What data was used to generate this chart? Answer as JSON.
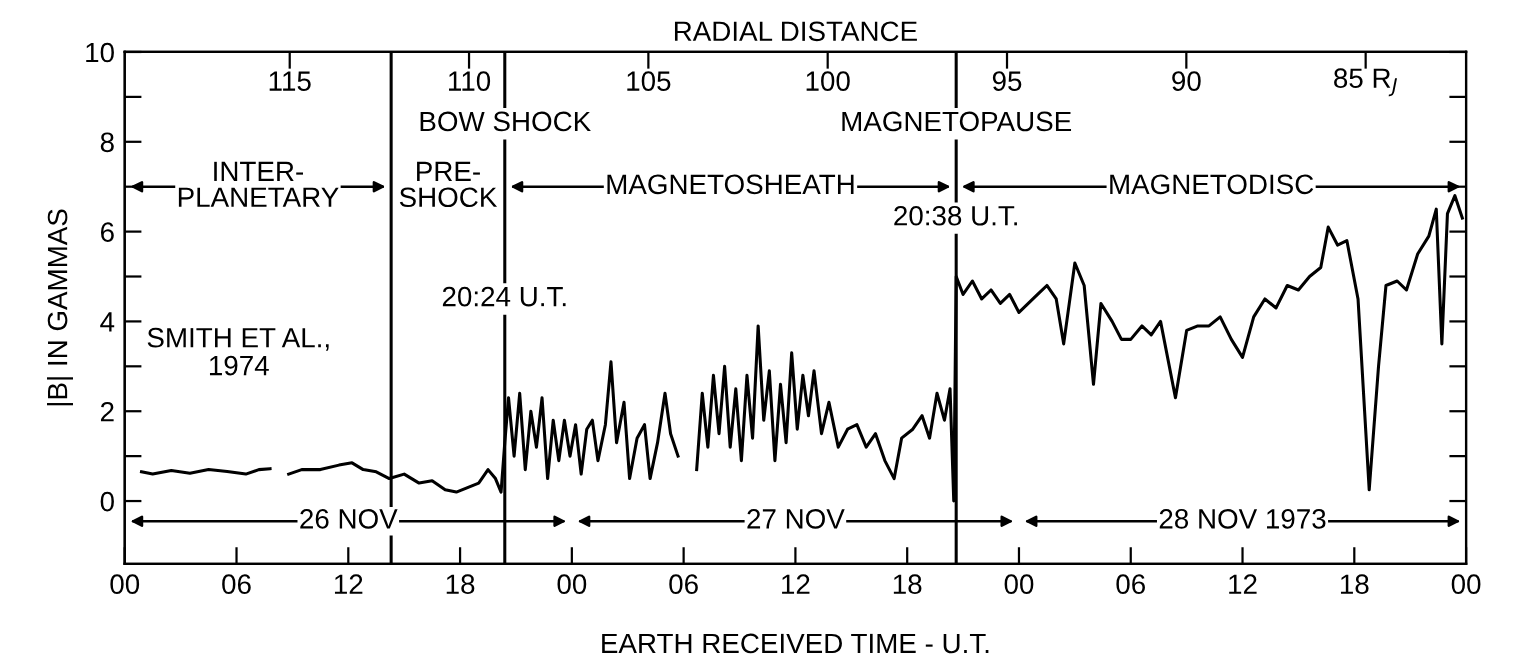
{
  "chart_data": {
    "type": "line",
    "x2label": "RADIAL DISTANCE",
    "ylabel": "|B| IN GAMMAS",
    "xlabel": "EARTH RECEIVED TIME - U.T.",
    "x": [
      0.9,
      1.5,
      2.5,
      3.5,
      4.5,
      5.5,
      6.5,
      7.2,
      7.8,
      8.3,
      8.8,
      9.5,
      10.5,
      11.5,
      12.2,
      12.8,
      13.5,
      14.2,
      15,
      15.8,
      16.5,
      17.2,
      17.8,
      18.4,
      19,
      19.5,
      19.9,
      20.2,
      20.4,
      20.6,
      20.9,
      21.2,
      21.5,
      21.8,
      22.1,
      22.4,
      22.7,
      23,
      23.3,
      23.6,
      23.9,
      24.2,
      24.5,
      24.8,
      25.1,
      25.4,
      25.8,
      26.1,
      26.4,
      26.8,
      27.1,
      27.5,
      27.9,
      28.2,
      28.6,
      29,
      29.3,
      29.7,
      30.2,
      30.7,
      31,
      31.3,
      31.6,
      31.9,
      32.2,
      32.5,
      32.8,
      33.1,
      33.4,
      33.7,
      34,
      34.3,
      34.6,
      34.9,
      35.2,
      35.5,
      35.8,
      36.1,
      36.4,
      36.7,
      37,
      37.4,
      37.8,
      38.3,
      38.8,
      39.3,
      39.8,
      40.3,
      40.8,
      41.3,
      41.7,
      42.3,
      42.8,
      43.2,
      43.6,
      44,
      44.3,
      44.5,
      44.63,
      45,
      45.5,
      46,
      46.5,
      47,
      47.5,
      48,
      48.5,
      49,
      49.5,
      50,
      50.4,
      51,
      51.5,
      52,
      52.4,
      53,
      53.5,
      54,
      54.6,
      55.1,
      55.6,
      56.4,
      57,
      57.6,
      58.2,
      58.8,
      59.4,
      60,
      60.6,
      61.2,
      61.8,
      62.4,
      63,
      63.6,
      64.2,
      64.6,
      65.1,
      65.6,
      66.2,
      66.8,
      67.3,
      67.7,
      68.3,
      68.8,
      69.4,
      70,
      70.4,
      70.7,
      71,
      71.4,
      71.8
    ],
    "series": [
      {
        "color": "#000000",
        "values": [
          0.65,
          0.6,
          0.68,
          0.62,
          0.7,
          0.66,
          0.6,
          0.7,
          0.72,
          null,
          0.6,
          0.7,
          0.7,
          0.8,
          0.85,
          0.7,
          0.65,
          0.5,
          0.6,
          0.4,
          0.45,
          0.25,
          0.2,
          0.3,
          0.4,
          0.7,
          0.5,
          0.2,
          1.3,
          2.3,
          1.0,
          2.4,
          0.7,
          2.0,
          1.2,
          2.3,
          0.5,
          1.8,
          0.9,
          1.8,
          1.0,
          1.7,
          0.6,
          1.6,
          1.8,
          0.9,
          1.7,
          3.1,
          1.3,
          2.2,
          0.5,
          1.4,
          1.7,
          0.5,
          1.3,
          2.4,
          1.5,
          1.0,
          null,
          0.7,
          2.4,
          1.2,
          2.8,
          1.5,
          3.0,
          1.2,
          2.5,
          0.9,
          2.8,
          1.4,
          3.9,
          1.8,
          2.9,
          0.9,
          2.6,
          1.3,
          3.3,
          1.6,
          2.8,
          1.9,
          2.9,
          1.5,
          2.2,
          1.2,
          1.6,
          1.7,
          1.2,
          1.5,
          0.9,
          0.5,
          1.4,
          1.6,
          1.9,
          1.4,
          2.4,
          1.8,
          2.5,
          0.0,
          5.0,
          4.6,
          4.9,
          4.5,
          4.7,
          4.4,
          4.6,
          4.2,
          4.4,
          4.6,
          4.8,
          4.5,
          3.5,
          5.3,
          4.8,
          2.6,
          4.4,
          4.0,
          3.6,
          3.6,
          3.9,
          3.7,
          4.0,
          2.3,
          3.8,
          3.9,
          3.9,
          4.1,
          3.6,
          3.2,
          4.1,
          4.5,
          4.3,
          4.8,
          4.7,
          5.0,
          5.2,
          6.1,
          5.7,
          5.8,
          4.5,
          0.25,
          3.0,
          4.8,
          4.9,
          4.7,
          5.5,
          5.9,
          6.5,
          3.5,
          6.4,
          6.8,
          6.3
        ]
      }
    ],
    "xlim": [
      0,
      72
    ],
    "xticks": [
      {
        "value": 0,
        "label": "00"
      },
      {
        "value": 6,
        "label": "06"
      },
      {
        "value": 12,
        "label": "12"
      },
      {
        "value": 18,
        "label": "18"
      },
      {
        "value": 24,
        "label": "00"
      },
      {
        "value": 30,
        "label": "06"
      },
      {
        "value": 36,
        "label": "12"
      },
      {
        "value": 42,
        "label": "18"
      },
      {
        "value": 48,
        "label": "00"
      },
      {
        "value": 54,
        "label": "06"
      },
      {
        "value": 60,
        "label": "12"
      },
      {
        "value": 66,
        "label": "18"
      },
      {
        "value": 72,
        "label": "00"
      }
    ],
    "ylim": [
      -1.4,
      10
    ],
    "yticks": [
      0,
      {
        "value": 1,
        "label": null
      },
      2,
      {
        "value": 3,
        "label": null
      },
      4,
      {
        "value": 5,
        "label": null
      },
      6,
      {
        "value": 7,
        "label": null
      },
      8,
      {
        "value": 9,
        "label": null
      },
      10
    ],
    "x2lim": [
      119.6,
      82.2
    ],
    "x2ticks": [
      115,
      110,
      105,
      100,
      95,
      90,
      {
        "value": 85,
        "label": "85 R$_{J}$"
      }
    ],
    "ref_lines": [
      {
        "axis": "x",
        "value": 14.3,
        "label": null,
        "color": "#000000"
      },
      {
        "axis": "x",
        "value": 20.4,
        "label": null,
        "color": "#000000"
      },
      {
        "axis": "x",
        "value": 44.63,
        "label": null,
        "color": "#000000"
      }
    ],
    "annotations": [
      "INTER-\nPLANETARY",
      "PRE-\nSHOCK",
      "MAGNETOSHEATH",
      "MAGNETODISC",
      "26 NOV",
      "27 NOV",
      "28 NOV 1973",
      "SMITH ET AL.,\n1974",
      "BOW SHOCK",
      "20:24 U.T.",
      "MAGNETOPAUSE",
      "20:38 U.T."
    ],
    "grid": false,
    "legend": false
  }
}
